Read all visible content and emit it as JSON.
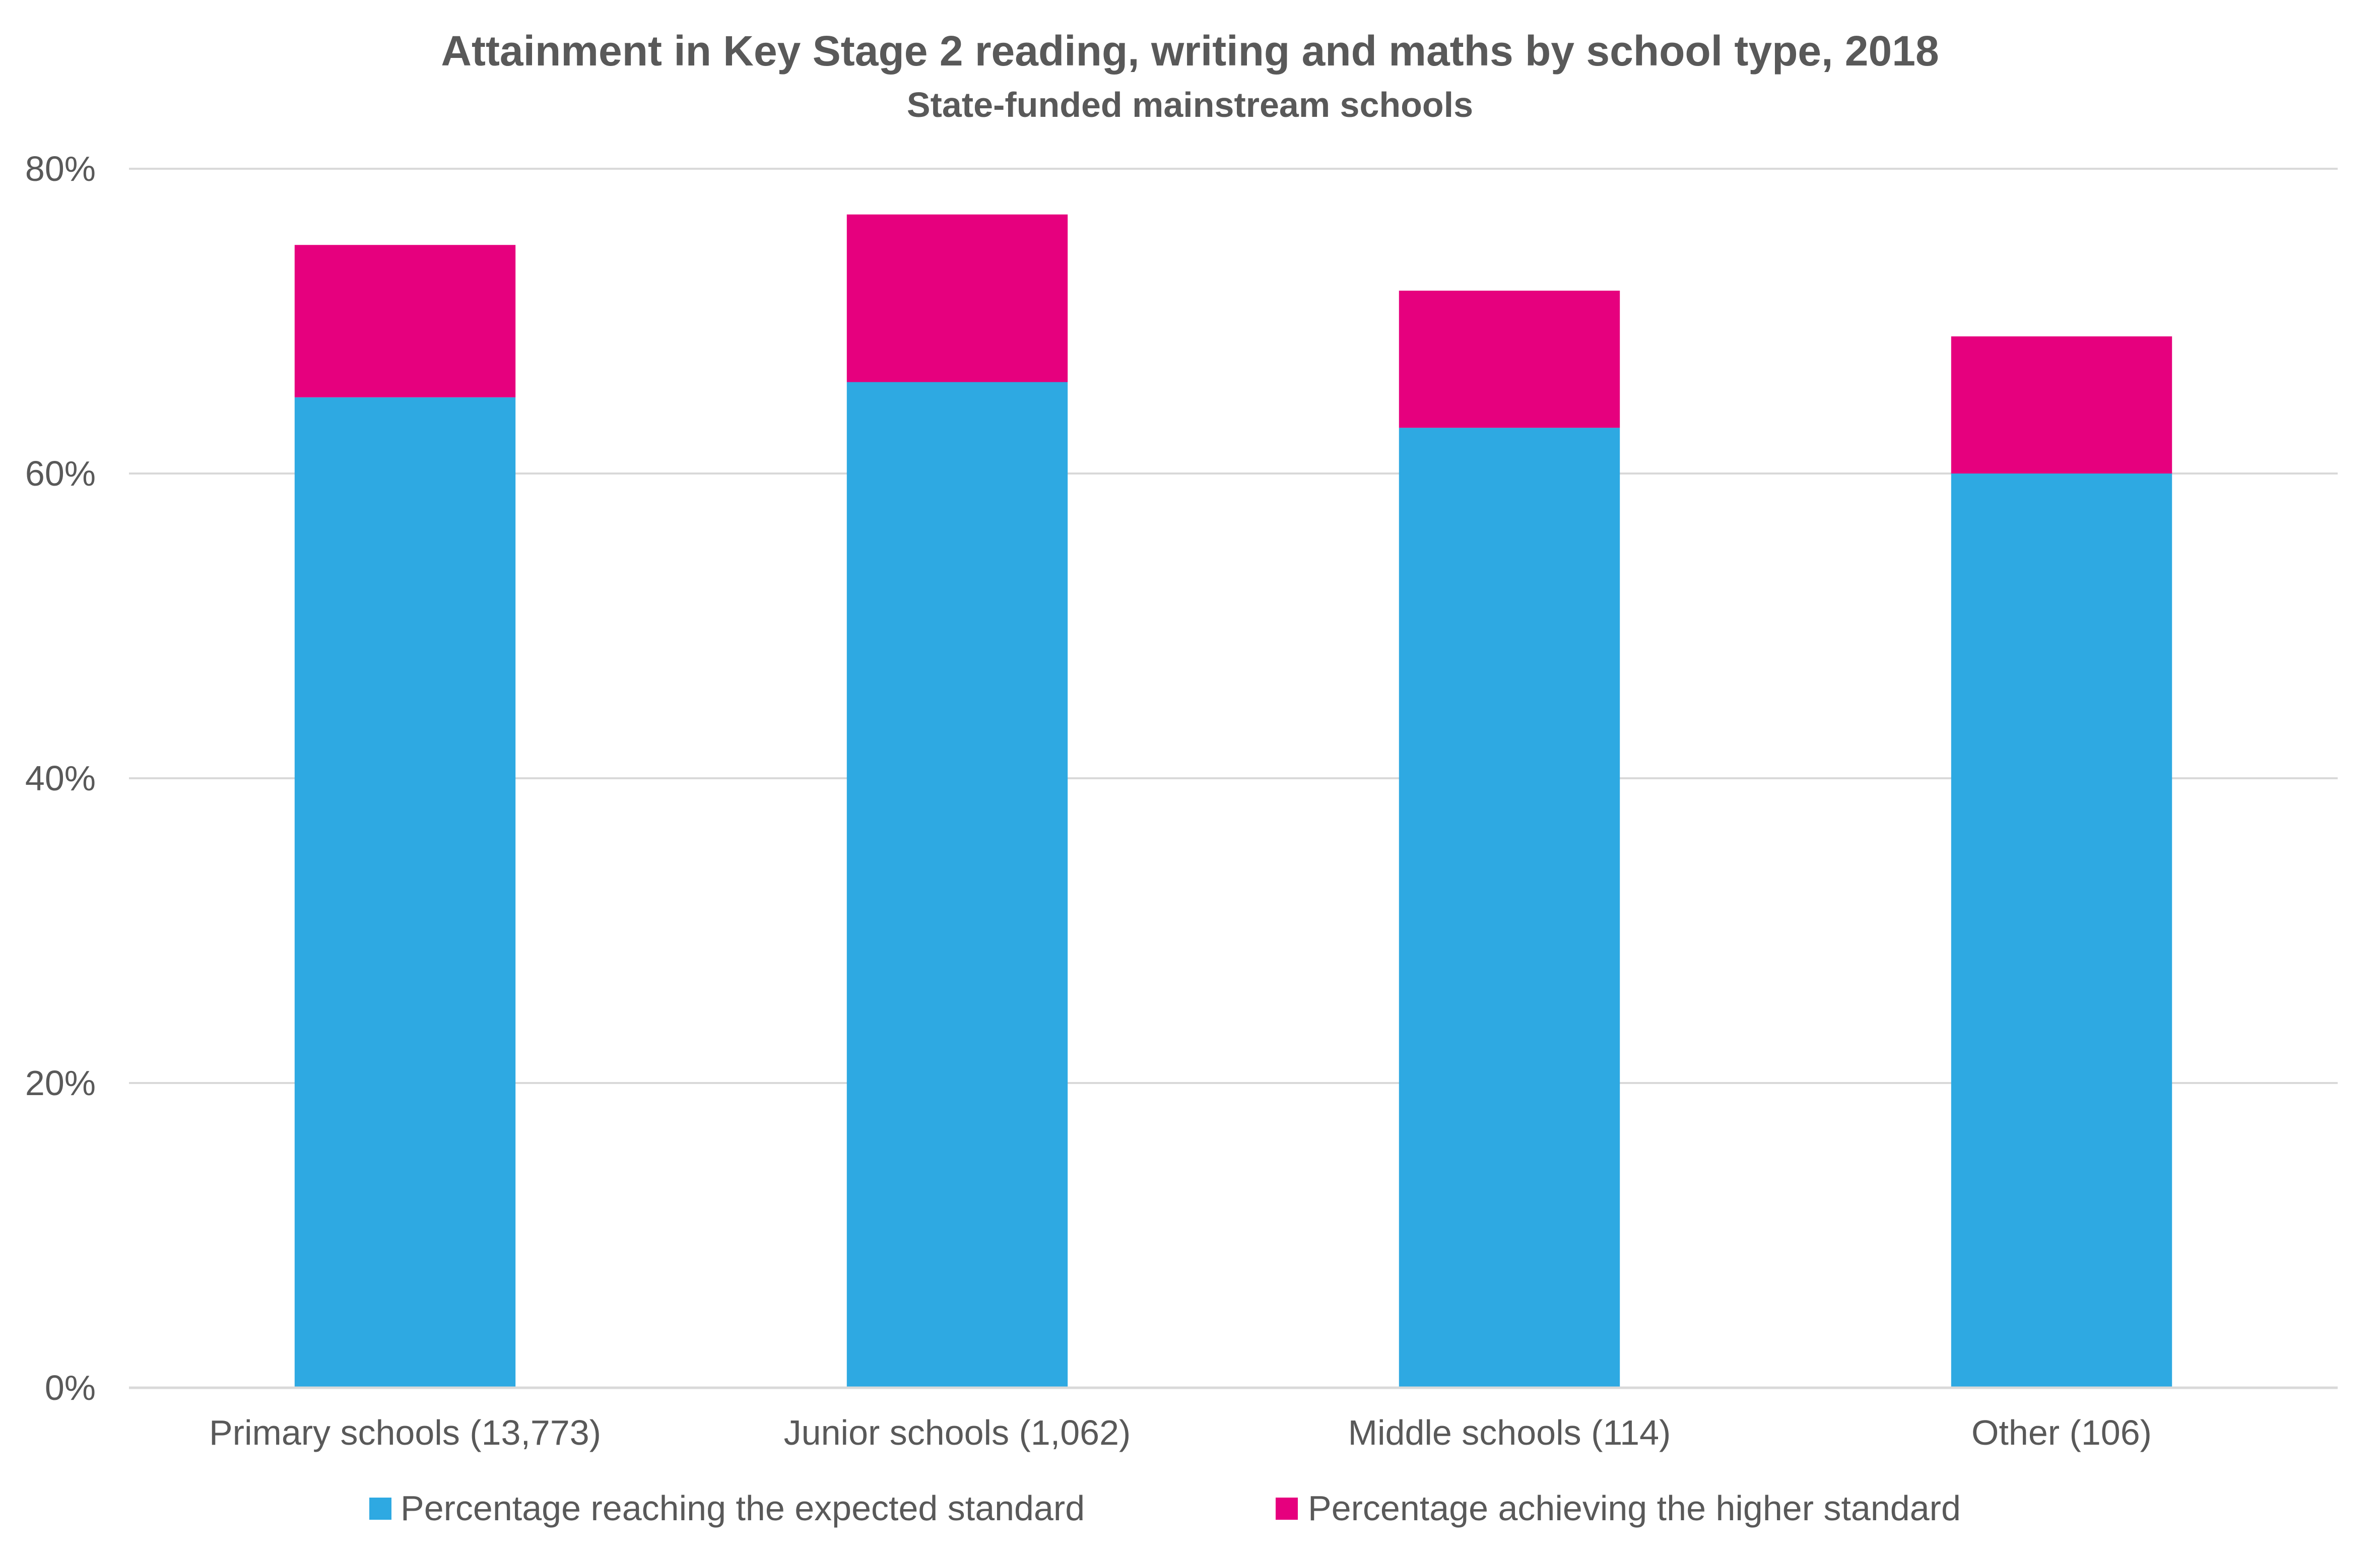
{
  "chart_data": {
    "type": "bar",
    "stacked": true,
    "title": "Attainment in Key Stage 2 reading, writing and maths by school type, 2018",
    "subtitle": "State-funded mainstream schools",
    "categories": [
      "Primary schools (13,773)",
      "Junior schools (1,062)",
      "Middle schools (114)",
      "Other (106)"
    ],
    "series": [
      {
        "name": "Percentage reaching the expected standard",
        "color": "#2ea9e2",
        "values": [
          65,
          66,
          63,
          60
        ]
      },
      {
        "name": "Percentage achieving the higher standard",
        "color": "#e6007e",
        "values": [
          10,
          11,
          9,
          9
        ]
      }
    ],
    "ylim": [
      0,
      80
    ],
    "yticks": [
      0,
      20,
      40,
      60,
      80
    ],
    "ytick_labels": [
      "0%",
      "20%",
      "40%",
      "60%",
      "80%"
    ],
    "grid": true,
    "legend": "bottom"
  }
}
